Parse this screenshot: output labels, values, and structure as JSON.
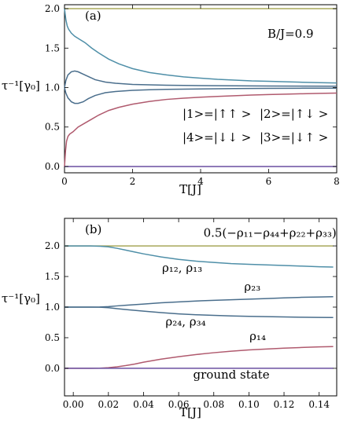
{
  "colors": {
    "olive": "#a8a85a",
    "teal": "#4f8fa8",
    "slate": "#4a6e8c",
    "rose": "#b05a6e",
    "purple": "#6a4fa0"
  },
  "chart_data": [
    {
      "type": "line",
      "panel_label": "(a)",
      "parameter_text": "B/J=0.9",
      "xlabel": "T[J]",
      "ylabel": "τ⁻¹[γ₀]",
      "xlim": [
        0,
        8
      ],
      "ylim": [
        -0.08,
        2.05
      ],
      "xticks": [
        "0",
        "2",
        "4",
        "6",
        "8"
      ],
      "xtick_values": [
        0,
        2,
        4,
        6,
        8
      ],
      "yticks": [
        "0.0",
        "0.5",
        "1.0",
        "1.5",
        "2.0"
      ],
      "ytick_values": [
        0,
        0.5,
        1,
        1.5,
        2
      ],
      "legend_states": [
        {
          "text": "|1>=|↑↑ >"
        },
        {
          "text": "|2>=|↑↓ >"
        },
        {
          "text": "|4>=|↓↓ >"
        },
        {
          "text": "|3>=|↓↑ >"
        }
      ],
      "series": [
        {
          "color_key": "olive",
          "x": [
            0,
            8
          ],
          "y": [
            2.0,
            2.0
          ]
        },
        {
          "color_key": "teal",
          "x": [
            0.0,
            0.04,
            0.08,
            0.12,
            0.2,
            0.3,
            0.45,
            0.6,
            0.8,
            1.0,
            1.3,
            1.6,
            2.0,
            2.5,
            3.0,
            3.5,
            4.0,
            4.5,
            5.0,
            5.5,
            6.0,
            6.5,
            7.0,
            7.5,
            8.0
          ],
          "y": [
            2.0,
            1.86,
            1.78,
            1.74,
            1.69,
            1.65,
            1.61,
            1.57,
            1.5,
            1.44,
            1.36,
            1.3,
            1.24,
            1.19,
            1.16,
            1.135,
            1.12,
            1.105,
            1.095,
            1.085,
            1.08,
            1.073,
            1.067,
            1.062,
            1.058
          ]
        },
        {
          "color_key": "slate",
          "x": [
            0.0,
            0.04,
            0.1,
            0.2,
            0.3,
            0.4,
            0.55,
            0.7,
            0.9,
            1.2,
            1.5,
            2.0,
            2.5,
            3.0,
            4.0,
            5.0,
            6.0,
            7.0,
            8.0
          ],
          "y": [
            1.0,
            1.09,
            1.16,
            1.2,
            1.21,
            1.2,
            1.17,
            1.14,
            1.1,
            1.07,
            1.055,
            1.04,
            1.035,
            1.03,
            1.025,
            1.022,
            1.02,
            1.018,
            1.017
          ]
        },
        {
          "color_key": "slate",
          "x": [
            0.0,
            0.04,
            0.1,
            0.2,
            0.3,
            0.4,
            0.55,
            0.7,
            0.9,
            1.2,
            1.5,
            2.0,
            2.5,
            3.0,
            4.0,
            5.0,
            6.0,
            7.0,
            8.0
          ],
          "y": [
            1.0,
            0.93,
            0.87,
            0.82,
            0.8,
            0.8,
            0.82,
            0.86,
            0.9,
            0.935,
            0.95,
            0.965,
            0.972,
            0.977,
            0.983,
            0.987,
            0.99,
            0.992,
            0.993
          ]
        },
        {
          "color_key": "rose",
          "x": [
            0.0,
            0.03,
            0.06,
            0.1,
            0.15,
            0.25,
            0.4,
            0.6,
            0.8,
            1.0,
            1.3,
            1.6,
            2.0,
            2.5,
            3.0,
            3.5,
            4.0,
            4.5,
            5.0,
            5.5,
            6.0,
            6.5,
            7.0,
            7.5,
            8.0
          ],
          "y": [
            0.0,
            0.2,
            0.32,
            0.38,
            0.41,
            0.44,
            0.5,
            0.55,
            0.6,
            0.65,
            0.71,
            0.75,
            0.79,
            0.825,
            0.85,
            0.865,
            0.878,
            0.888,
            0.897,
            0.905,
            0.912,
            0.917,
            0.922,
            0.926,
            0.93
          ]
        },
        {
          "color_key": "purple",
          "x": [
            0,
            8
          ],
          "y": [
            0.0,
            0.0
          ]
        }
      ]
    },
    {
      "type": "line",
      "panel_label": "(b)",
      "xlabel": "T[J]",
      "ylabel": "τ⁻¹[γ₀]",
      "xlim": [
        -0.005,
        0.15
      ],
      "ylim": [
        -0.45,
        2.45
      ],
      "xticks": [
        "0.00",
        "0.02",
        "0.04",
        "0.06",
        "0.08",
        "0.10",
        "0.12",
        "0.14"
      ],
      "xtick_values": [
        0,
        0.02,
        0.04,
        0.06,
        0.08,
        0.1,
        0.12,
        0.14
      ],
      "yticks": [
        "0.0",
        "0.5",
        "1.0",
        "1.5",
        "2.0"
      ],
      "ytick_values": [
        0,
        0.5,
        1,
        1.5,
        2
      ],
      "annotations": [
        {
          "text": "0.5(−ρ₁₁−ρ₄₄+ρ₂₂+ρ₃₃)",
          "x": 0.112,
          "y": 2.15
        },
        {
          "text": "ρ₁₂, ρ₁₃",
          "x": 0.062,
          "y": 1.58
        },
        {
          "text": "ρ₂₃",
          "x": 0.102,
          "y": 1.27
        },
        {
          "text": "ρ₂₄, ρ₃₄",
          "x": 0.064,
          "y": 0.7
        },
        {
          "text": "ρ₁₄",
          "x": 0.105,
          "y": 0.46
        },
        {
          "text": "ground state",
          "x": 0.09,
          "y": -0.17
        }
      ],
      "series": [
        {
          "color_key": "olive",
          "x": [
            -0.005,
            0.148
          ],
          "y": [
            2.0,
            2.0
          ]
        },
        {
          "color_key": "teal",
          "x": [
            -0.005,
            0.0,
            0.01,
            0.015,
            0.02,
            0.025,
            0.03,
            0.035,
            0.04,
            0.05,
            0.06,
            0.07,
            0.08,
            0.09,
            0.1,
            0.11,
            0.12,
            0.13,
            0.14,
            0.148
          ],
          "y": [
            2.0,
            2.0,
            2.0,
            1.995,
            1.985,
            1.96,
            1.93,
            1.9,
            1.87,
            1.82,
            1.78,
            1.75,
            1.73,
            1.71,
            1.7,
            1.69,
            1.68,
            1.67,
            1.66,
            1.655
          ]
        },
        {
          "color_key": "slate",
          "x": [
            -0.005,
            0.0,
            0.01,
            0.015,
            0.02,
            0.025,
            0.03,
            0.04,
            0.05,
            0.06,
            0.07,
            0.08,
            0.09,
            0.1,
            0.11,
            0.12,
            0.13,
            0.14,
            0.148
          ],
          "y": [
            1.0,
            1.0,
            1.0,
            1.002,
            1.008,
            1.02,
            1.03,
            1.05,
            1.07,
            1.085,
            1.1,
            1.11,
            1.12,
            1.13,
            1.14,
            1.15,
            1.16,
            1.165,
            1.17
          ]
        },
        {
          "color_key": "slate",
          "x": [
            -0.005,
            0.0,
            0.01,
            0.015,
            0.02,
            0.025,
            0.03,
            0.04,
            0.05,
            0.06,
            0.07,
            0.08,
            0.09,
            0.1,
            0.11,
            0.12,
            0.13,
            0.14,
            0.148
          ],
          "y": [
            1.0,
            1.0,
            1.0,
            0.998,
            0.99,
            0.975,
            0.96,
            0.935,
            0.91,
            0.89,
            0.875,
            0.865,
            0.855,
            0.85,
            0.845,
            0.84,
            0.835,
            0.832,
            0.83
          ]
        },
        {
          "color_key": "rose",
          "x": [
            -0.005,
            0.0,
            0.01,
            0.015,
            0.02,
            0.025,
            0.03,
            0.035,
            0.04,
            0.05,
            0.06,
            0.07,
            0.08,
            0.09,
            0.1,
            0.11,
            0.12,
            0.13,
            0.14,
            0.148
          ],
          "y": [
            0.0,
            0.0,
            0.0,
            0.002,
            0.01,
            0.025,
            0.045,
            0.07,
            0.1,
            0.15,
            0.19,
            0.225,
            0.255,
            0.28,
            0.3,
            0.315,
            0.33,
            0.34,
            0.35,
            0.355
          ]
        },
        {
          "color_key": "purple",
          "x": [
            -0.005,
            0.148
          ],
          "y": [
            0.0,
            0.0
          ]
        }
      ]
    }
  ]
}
